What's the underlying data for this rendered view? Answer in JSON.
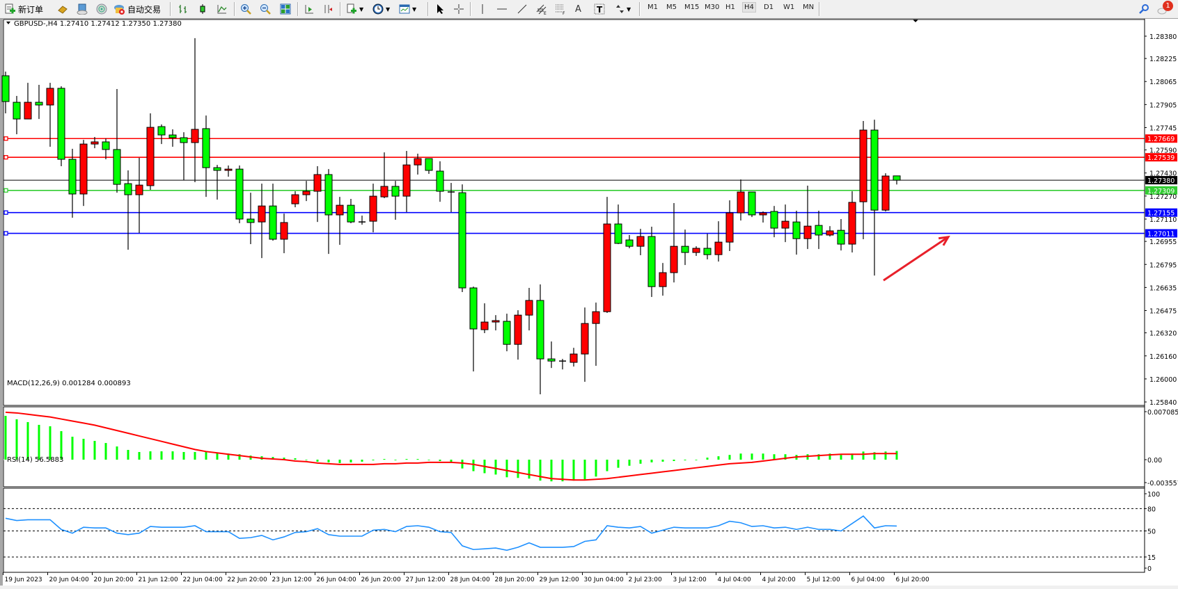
{
  "toolbar": {
    "new_order_label": "新订单",
    "auto_trading_label": "自动交易",
    "timeframes": [
      "M1",
      "M5",
      "M15",
      "M30",
      "H1",
      "H4",
      "D1",
      "W1",
      "MN"
    ],
    "active_timeframe": "H4",
    "notification_count": "1",
    "tools": [
      "cursor",
      "crosshair",
      "vertical-line",
      "horizontal-line",
      "trend-line",
      "equidistant-channel",
      "fibonacci",
      "text",
      "text-label",
      "arrows"
    ]
  },
  "chart_header": {
    "symbol_line": "GBPUSD-,H4  1.27410 1.27412 1.27350 1.27380"
  },
  "colors": {
    "bull_candle": "#ff0000",
    "bear_candle": "#00ff00",
    "macd_histogram": "#00ff00",
    "macd_signal": "#ff0000",
    "rsi_line": "#1e90ff",
    "resistance": "#ff0000",
    "support": "#0000ff",
    "pivot": "#32cd32",
    "bid": "#000000",
    "arrow": "#e8202a"
  },
  "chart_data": [
    {
      "type": "candlestick",
      "title": "GBPUSD-,H4",
      "ohlc_label": "1.27410 1.27412 1.27350 1.27380",
      "ylim": [
        1.2584,
        1.2849
      ],
      "y_ticks": [
        "1.28380",
        "1.28225",
        "1.28065",
        "1.27905",
        "1.27745",
        "1.27590",
        "1.27430",
        "1.27270",
        "1.27110",
        "1.26955",
        "1.26795",
        "1.26635",
        "1.26475",
        "1.26320",
        "1.26160",
        "1.26000",
        "1.25840"
      ],
      "x_ticks": [
        {
          "bar": 0,
          "label": "19 Jun 2023"
        },
        {
          "bar": 4,
          "label": "20 Jun 04:00"
        },
        {
          "bar": 8,
          "label": "20 Jun 20:00"
        },
        {
          "bar": 12,
          "label": "21 Jun 12:00"
        },
        {
          "bar": 16,
          "label": "22 Jun 04:00"
        },
        {
          "bar": 20,
          "label": "22 Jun 20:00"
        },
        {
          "bar": 24,
          "label": "23 Jun 12:00"
        },
        {
          "bar": 28,
          "label": "26 Jun 04:00"
        },
        {
          "bar": 32,
          "label": "26 Jun 20:00"
        },
        {
          "bar": 36,
          "label": "27 Jun 12:00"
        },
        {
          "bar": 40,
          "label": "28 Jun 04:00"
        },
        {
          "bar": 44,
          "label": "28 Jun 20:00"
        },
        {
          "bar": 48,
          "label": "29 Jun 12:00"
        },
        {
          "bar": 52,
          "label": "30 Jun 04:00"
        },
        {
          "bar": 56,
          "label": "2 Jul 23:00"
        },
        {
          "bar": 60,
          "label": "3 Jul 12:00"
        },
        {
          "bar": 64,
          "label": "4 Jul 04:00"
        },
        {
          "bar": 68,
          "label": "4 Jul 20:00"
        },
        {
          "bar": 72,
          "label": "5 Jul 12:00"
        },
        {
          "bar": 76,
          "label": "6 Jul 04:00"
        },
        {
          "bar": 80,
          "label": "6 Jul 20:00"
        }
      ],
      "ohlc": [
        [
          1.28105,
          1.28134,
          1.27844,
          1.27926
        ],
        [
          1.27921,
          1.27965,
          1.27699,
          1.27805
        ],
        [
          1.27805,
          1.28056,
          1.27805,
          1.27921
        ],
        [
          1.27921,
          1.28042,
          1.27805,
          1.27902
        ],
        [
          1.27902,
          1.28056,
          1.27612,
          1.28018
        ],
        [
          1.28018,
          1.28032,
          1.27477,
          1.27525
        ],
        [
          1.27525,
          1.27598,
          1.27119,
          1.27284
        ],
        [
          1.27284,
          1.2766,
          1.27201,
          1.27631
        ],
        [
          1.27631,
          1.2768,
          1.27602,
          1.27646
        ],
        [
          1.27646,
          1.2767,
          1.27525,
          1.27593
        ],
        [
          1.27593,
          1.28013,
          1.27293,
          1.27351
        ],
        [
          1.27356,
          1.27448,
          1.26897,
          1.27279
        ],
        [
          1.27279,
          1.27535,
          1.27013,
          1.27346
        ],
        [
          1.27342,
          1.27844,
          1.27313,
          1.27747
        ],
        [
          1.27752,
          1.27767,
          1.27631,
          1.27694
        ],
        [
          1.27694,
          1.27733,
          1.27612,
          1.27675
        ],
        [
          1.27675,
          1.27713,
          1.2738,
          1.27641
        ],
        [
          1.27641,
          1.28366,
          1.27366,
          1.27733
        ],
        [
          1.27738,
          1.27829,
          1.27264,
          1.27467
        ],
        [
          1.27467,
          1.27486,
          1.27245,
          1.27448
        ],
        [
          1.27448,
          1.27482,
          1.27404,
          1.27457
        ],
        [
          1.27457,
          1.27482,
          1.27081,
          1.2711
        ],
        [
          1.2711,
          1.27293,
          1.26936,
          1.27086
        ],
        [
          1.2709,
          1.27356,
          1.26839,
          1.27201
        ],
        [
          1.27201,
          1.27356,
          1.2696,
          1.2697
        ],
        [
          1.2697,
          1.27148,
          1.26873,
          1.27086
        ],
        [
          1.27216,
          1.27303,
          1.27192,
          1.27279
        ],
        [
          1.27279,
          1.27375,
          1.27235,
          1.27303
        ],
        [
          1.27303,
          1.27477,
          1.2709,
          1.27419
        ],
        [
          1.27419,
          1.27457,
          1.26868,
          1.27139
        ],
        [
          1.27139,
          1.27264,
          1.26931,
          1.27206
        ],
        [
          1.27206,
          1.2725,
          1.27081,
          1.2709
        ],
        [
          1.2709,
          1.27134,
          1.27071,
          1.2709
        ],
        [
          1.27095,
          1.27356,
          1.27018,
          1.27269
        ],
        [
          1.27264,
          1.27573,
          1.27255,
          1.27337
        ],
        [
          1.27337,
          1.27375,
          1.27105,
          1.27269
        ],
        [
          1.27269,
          1.27583,
          1.27158,
          1.27486
        ],
        [
          1.27486,
          1.27564,
          1.27419,
          1.2753
        ],
        [
          1.2753,
          1.2753,
          1.27424,
          1.27448
        ],
        [
          1.27443,
          1.27511,
          1.2723,
          1.27303
        ],
        [
          1.27298,
          1.27361,
          1.27158,
          1.27298
        ],
        [
          1.27293,
          1.27351,
          1.26603,
          1.26632
        ],
        [
          1.26632,
          1.26641,
          1.26052,
          1.26347
        ],
        [
          1.26342,
          1.26525,
          1.26318,
          1.26395
        ],
        [
          1.26395,
          1.26443,
          1.26337,
          1.26405
        ],
        [
          1.264,
          1.26453,
          1.26192,
          1.2624
        ],
        [
          1.2624,
          1.26477,
          1.26134,
          1.26443
        ],
        [
          1.26443,
          1.26632,
          1.26337,
          1.26545
        ],
        [
          1.26545,
          1.26656,
          1.25893,
          1.26139
        ],
        [
          1.26139,
          1.2626,
          1.26076,
          1.26124
        ],
        [
          1.26124,
          1.26139,
          1.26066,
          1.26124
        ],
        [
          1.26115,
          1.26216,
          1.26086,
          1.26173
        ],
        [
          1.26173,
          1.26496,
          1.2598,
          1.26385
        ],
        [
          1.26385,
          1.2653,
          1.26091,
          1.26467
        ],
        [
          1.26467,
          1.27264,
          1.26458,
          1.27076
        ],
        [
          1.27076,
          1.27211,
          1.26936,
          1.26941
        ],
        [
          1.26965,
          1.26999,
          1.26907,
          1.26921
        ],
        [
          1.26921,
          1.27042,
          1.26859,
          1.26989
        ],
        [
          1.26989,
          1.27057,
          1.26569,
          1.26641
        ],
        [
          1.26641,
          1.26805,
          1.26578,
          1.26738
        ],
        [
          1.26738,
          1.27221,
          1.2667,
          1.26921
        ],
        [
          1.26921,
          1.27037,
          1.26791,
          1.26878
        ],
        [
          1.26878,
          1.26921,
          1.26854,
          1.26907
        ],
        [
          1.26907,
          1.27008,
          1.2683,
          1.26863
        ],
        [
          1.26863,
          1.27095,
          1.26815,
          1.2695
        ],
        [
          1.2695,
          1.2724,
          1.26888,
          1.27153
        ],
        [
          1.27153,
          1.27385,
          1.271,
          1.27298
        ],
        [
          1.27298,
          1.27298,
          1.27124,
          1.27139
        ],
        [
          1.27139,
          1.27163,
          1.27086,
          1.27153
        ],
        [
          1.27163,
          1.27201,
          1.26984,
          1.27047
        ],
        [
          1.27047,
          1.27211,
          1.2695,
          1.27095
        ],
        [
          1.2709,
          1.27168,
          1.26863,
          1.26974
        ],
        [
          1.26974,
          1.27342,
          1.26902,
          1.27061
        ],
        [
          1.27066,
          1.27168,
          1.26902,
          1.26999
        ],
        [
          1.26999,
          1.27061,
          1.26989,
          1.27028
        ],
        [
          1.27032,
          1.2711,
          1.26892,
          1.26936
        ],
        [
          1.26936,
          1.27303,
          1.26878,
          1.27226
        ],
        [
          1.2723,
          1.27791,
          1.2697,
          1.27728
        ],
        [
          1.27728,
          1.278,
          1.26718,
          1.27172
        ],
        [
          1.27172,
          1.27428,
          1.27163,
          1.27409
        ],
        [
          1.2741,
          1.27412,
          1.2735,
          1.2738
        ]
      ],
      "levels": [
        {
          "price": 1.27669,
          "label": "1.27669",
          "kind": "resistance"
        },
        {
          "price": 1.27539,
          "label": "1.27539",
          "kind": "resistance"
        },
        {
          "price": 1.2738,
          "label": "1.27380",
          "kind": "bid"
        },
        {
          "price": 1.27309,
          "label": "1.27309",
          "kind": "pivot"
        },
        {
          "price": 1.27155,
          "label": "1.27155",
          "kind": "support"
        },
        {
          "price": 1.27011,
          "label": "1.27011",
          "kind": "support"
        }
      ],
      "annotation_arrow": {
        "from": {
          "bar": 80,
          "price": 1.26718
        },
        "to": {
          "bar": 85,
          "price": 1.27
        }
      }
    },
    {
      "type": "bar+line",
      "title": "MACD(12,26,9) 0.001284 0.000893",
      "ylim": [
        -0.003557,
        0.007085
      ],
      "y_ticks": [
        "0.007085",
        "0.00",
        "-0.003557"
      ],
      "histogram": [
        0.00647,
        0.00596,
        0.00555,
        0.00514,
        0.00493,
        0.00421,
        0.00339,
        0.00308,
        0.00277,
        0.00246,
        0.00195,
        0.00144,
        0.00113,
        0.00123,
        0.00123,
        0.00123,
        0.00113,
        0.00113,
        0.00113,
        0.001,
        0.0009,
        0.0008,
        0.0006,
        0.0005,
        0.0004,
        0.0003,
        0.0002,
        0.0,
        -0.0003,
        -0.0004,
        -0.0005,
        -0.0004,
        -0.0003,
        -0.0001,
        0.0001,
        0.0,
        0.0001,
        0.0001,
        0.0,
        -0.0002,
        -0.0004,
        -0.0013,
        -0.0017,
        -0.002,
        -0.0022,
        -0.0026,
        -0.0027,
        -0.0028,
        -0.0031,
        -0.0032,
        -0.0032,
        -0.0031,
        -0.0029,
        -0.0025,
        -0.0017,
        -0.0012,
        -0.0009,
        -0.0006,
        -0.0004,
        -0.0003,
        -0.0002,
        -0.0001,
        0.0,
        0.0003,
        0.0005,
        0.0007,
        0.0009,
        0.0009,
        0.0009,
        0.0008,
        0.0008,
        0.0007,
        0.0008,
        0.0008,
        0.0009,
        0.0007,
        0.0009,
        0.0012,
        0.0011,
        0.0012,
        0.001284
      ],
      "signal": [
        0.007,
        0.0069,
        0.0067,
        0.0065,
        0.0063,
        0.006,
        0.0057,
        0.0054,
        0.0051,
        0.0047,
        0.0043,
        0.0039,
        0.0035,
        0.0031,
        0.0027,
        0.0023,
        0.0019,
        0.0015,
        0.0012,
        0.001,
        0.0008,
        0.0006,
        0.0004,
        0.0002,
        0.0001,
        0.0,
        -0.0002,
        -0.0003,
        -0.0005,
        -0.0006,
        -0.0007,
        -0.0007,
        -0.0007,
        -0.0007,
        -0.0006,
        -0.0006,
        -0.0005,
        -0.0005,
        -0.0004,
        -0.0004,
        -0.0004,
        -0.0005,
        -0.0007,
        -0.001,
        -0.0013,
        -0.0016,
        -0.0019,
        -0.0022,
        -0.0025,
        -0.0028,
        -0.0029,
        -0.003,
        -0.003,
        -0.0029,
        -0.0028,
        -0.0026,
        -0.0024,
        -0.0022,
        -0.002,
        -0.0018,
        -0.0016,
        -0.0014,
        -0.0012,
        -0.001,
        -0.0008,
        -0.0006,
        -0.0005,
        -0.0004,
        -0.0002,
        0.0,
        0.0002,
        0.0004,
        0.0005,
        0.0006,
        0.0007,
        0.0008,
        0.0008,
        0.0008,
        0.0009,
        0.0009,
        0.000893
      ]
    },
    {
      "type": "line",
      "title": "RSI(14) 56.5883",
      "ylim": [
        0,
        100
      ],
      "y_ticks": [
        "100",
        "80",
        "50",
        "15",
        "0"
      ],
      "levels": [
        80,
        50,
        15
      ],
      "values": [
        67,
        64,
        65,
        65,
        65,
        52,
        47,
        55,
        54,
        54,
        47,
        45,
        47,
        56,
        55,
        55,
        55,
        57,
        49,
        49,
        49,
        40,
        41,
        44,
        38,
        42,
        48,
        49,
        53,
        45,
        43,
        43,
        43,
        51,
        52,
        49,
        56,
        57,
        55,
        49,
        48,
        30,
        25,
        26,
        27,
        24,
        28,
        34,
        28,
        28,
        28,
        29,
        36,
        38,
        57,
        55,
        54,
        56,
        47,
        51,
        55,
        54,
        54,
        54,
        57,
        63,
        61,
        56,
        57,
        54,
        55,
        52,
        55,
        52,
        52,
        50,
        60,
        70,
        54,
        57,
        56.5883
      ]
    }
  ]
}
